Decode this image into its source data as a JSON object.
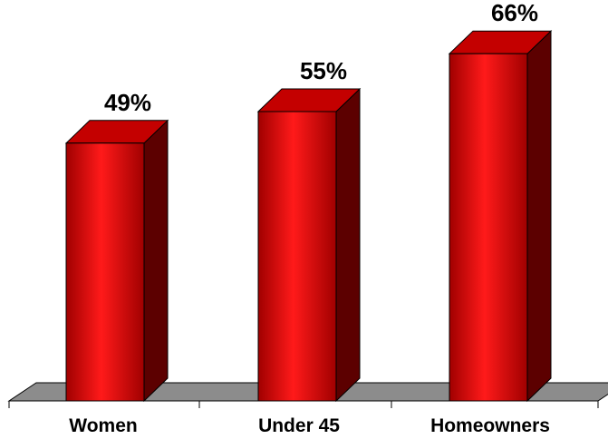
{
  "chart_data": {
    "type": "bar",
    "categories": [
      "Women",
      "Under 45",
      "Homeowners"
    ],
    "values": [
      49,
      55,
      66
    ],
    "data_labels": [
      "49%",
      "55%",
      "66%"
    ],
    "title": "",
    "xlabel": "",
    "ylabel": "",
    "ylim": [
      0,
      70
    ],
    "grid": false,
    "legend": "none",
    "style": "3d-column",
    "colors": {
      "bar_front_light": "#ff1a1a",
      "bar_front_dark": "#a00000",
      "bar_top": "#c40000",
      "bar_side": "#5c0000",
      "floor": "#8c8c8c"
    }
  }
}
